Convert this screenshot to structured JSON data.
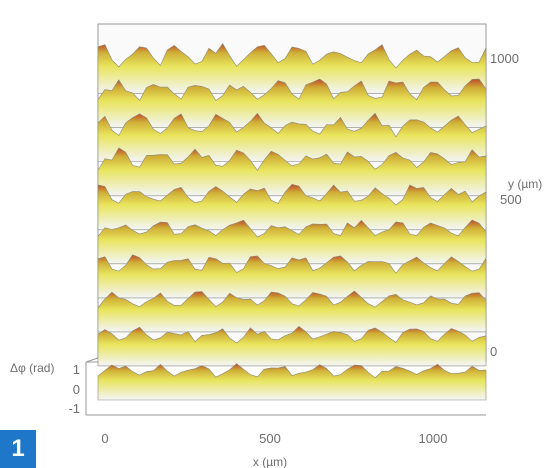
{
  "panel": {
    "label": "1"
  },
  "colors": {
    "surface_low": "#f3f5f8",
    "surface_mid": "#e7e35a",
    "surface_high": "#c9a832",
    "peak": "#c0482a",
    "badge": "#1f77c9",
    "axis_text": "#6f6f6f"
  },
  "chart_data": {
    "type": "surface",
    "x_axis": {
      "label": "x (µm)",
      "ticks": [
        0,
        500,
        1000
      ],
      "range": [
        0,
        1100
      ]
    },
    "y_axis": {
      "label": "y (µm)",
      "ticks": [
        0,
        500,
        1000
      ],
      "range": [
        0,
        1100
      ]
    },
    "z_axis": {
      "label": "Δφ (rad)",
      "ticks": [
        1,
        0,
        -1
      ],
      "range": [
        -1,
        1
      ]
    },
    "ridges": [
      {
        "y": 0,
        "amplitude": 0.55
      },
      {
        "y": 120,
        "amplitude": 0.65
      },
      {
        "y": 240,
        "amplitude": 0.7
      },
      {
        "y": 360,
        "amplitude": 0.8
      },
      {
        "y": 480,
        "amplitude": 0.85
      },
      {
        "y": 600,
        "amplitude": 0.85
      },
      {
        "y": 720,
        "amplitude": 0.9
      },
      {
        "y": 840,
        "amplitude": 0.9
      },
      {
        "y": 960,
        "amplitude": 0.95
      },
      {
        "y": 1080,
        "amplitude": 1.0
      }
    ]
  }
}
